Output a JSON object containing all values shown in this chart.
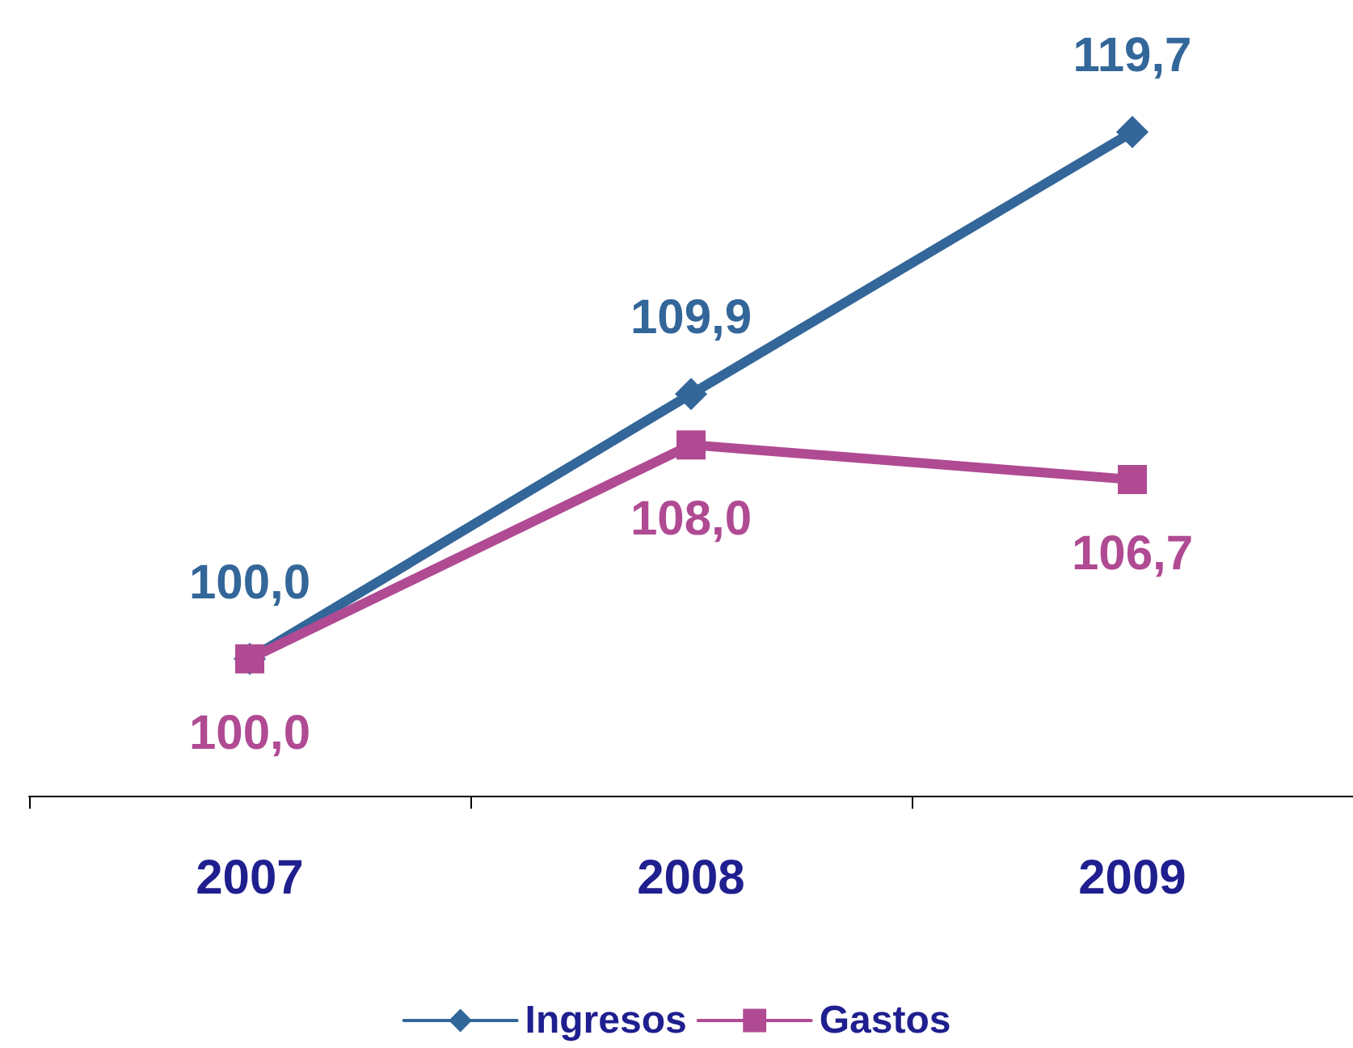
{
  "chart_data": {
    "type": "line",
    "categories": [
      "2007",
      "2008",
      "2009"
    ],
    "series": [
      {
        "name": "Ingresos",
        "color": "#336699",
        "marker": "diamond",
        "values": [
          100.0,
          109.9,
          119.7
        ],
        "value_labels": [
          "100,0",
          "109,9",
          "119,7"
        ]
      },
      {
        "name": "Gastos",
        "color": "#b04a93",
        "marker": "square",
        "values": [
          100.0,
          108.0,
          106.7
        ],
        "value_labels": [
          "100,0",
          "108,0",
          "106,7"
        ]
      }
    ],
    "legend": "bottom",
    "grid": false,
    "line_style": "solid"
  }
}
